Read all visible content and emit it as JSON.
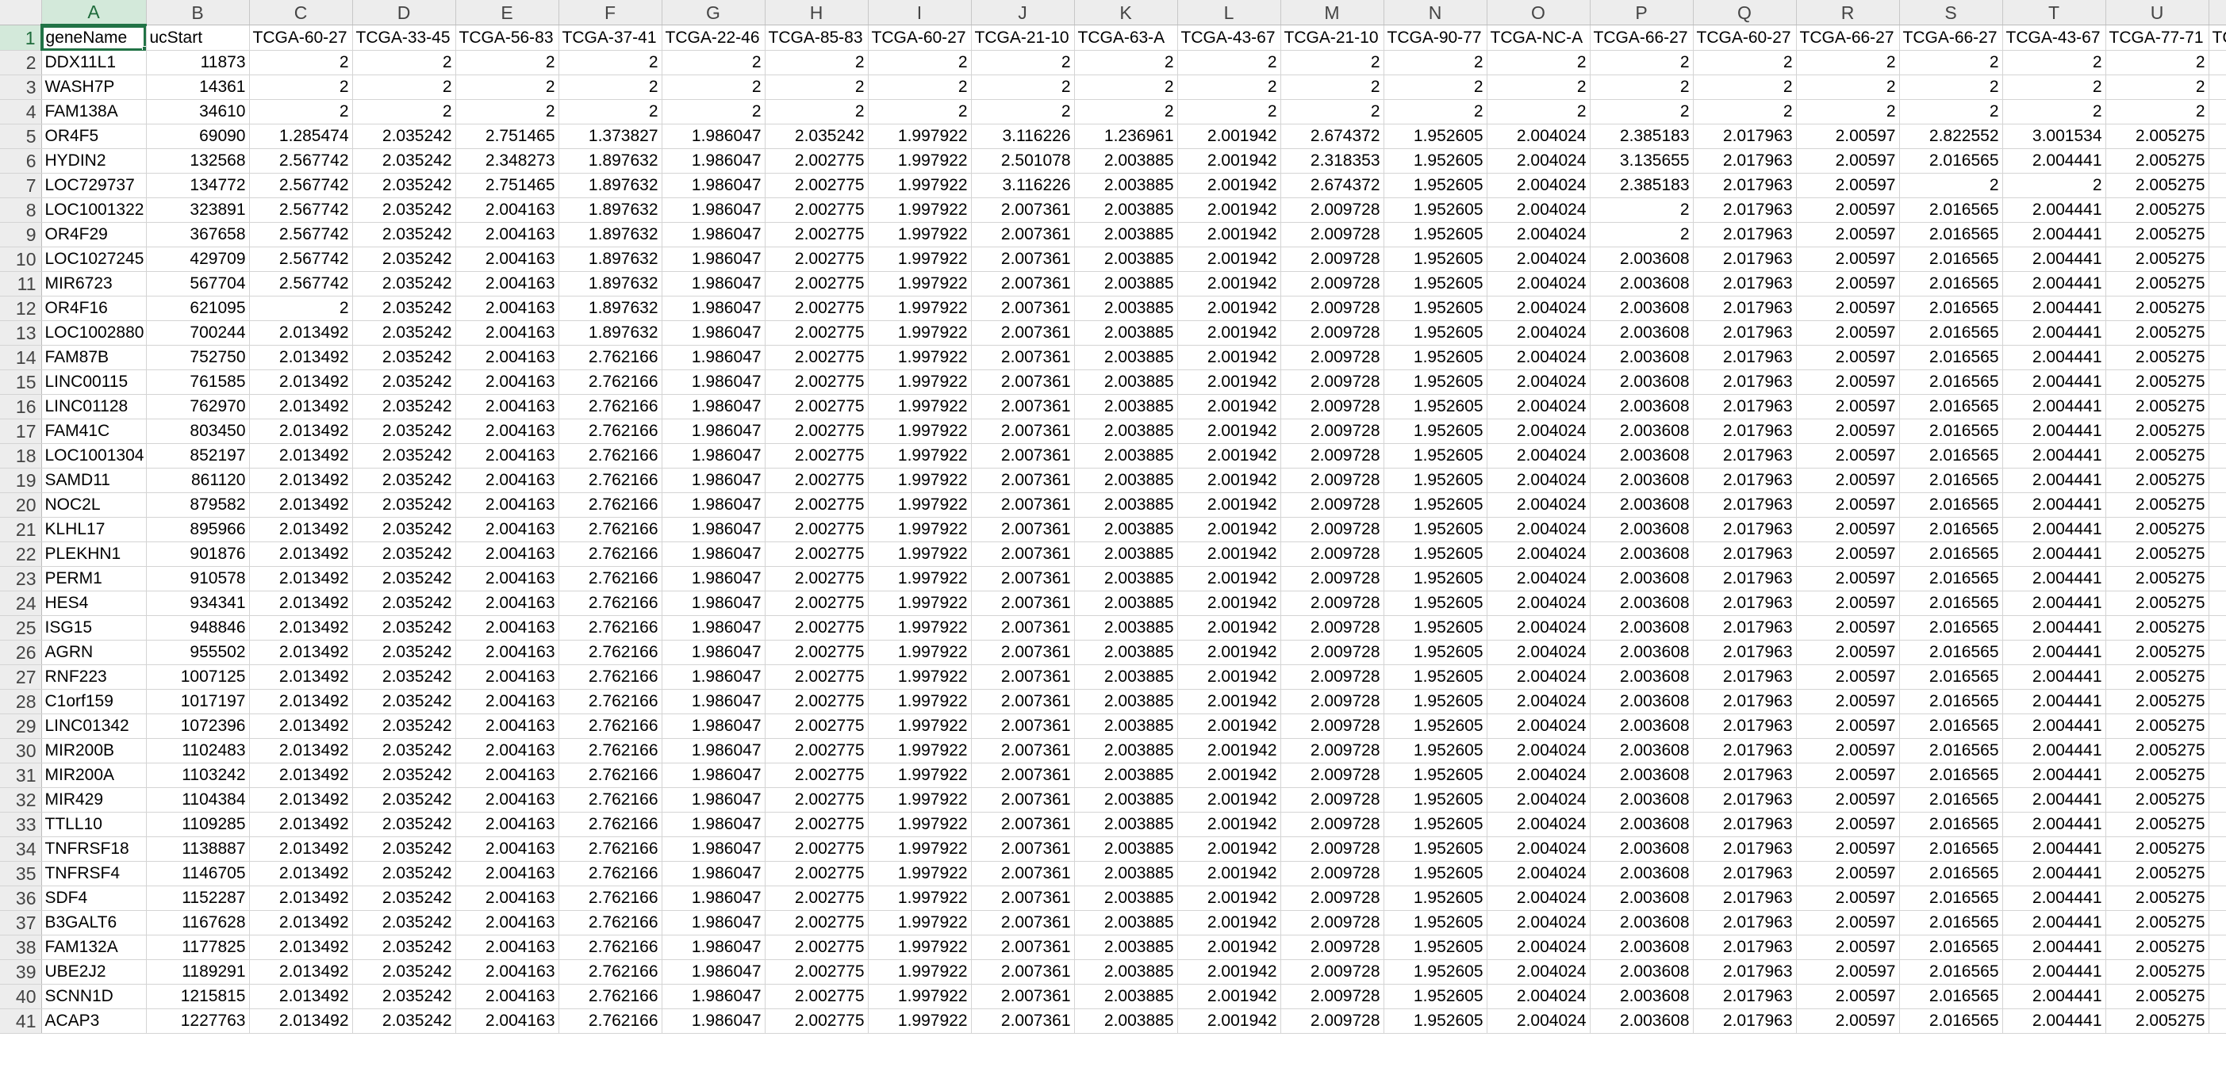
{
  "columns": [
    "A",
    "B",
    "C",
    "D",
    "E",
    "F",
    "G",
    "H",
    "I",
    "J",
    "K",
    "L",
    "M",
    "N",
    "O",
    "P",
    "Q",
    "R",
    "S",
    "T",
    "U"
  ],
  "partial_column_letter": "",
  "active_cell": "A1",
  "rows": [
    {
      "n": "1",
      "cells": [
        "geneName",
        "ucStart",
        "TCGA-60-27",
        "TCGA-33-45",
        "TCGA-56-83",
        "TCGA-37-41",
        "TCGA-22-46",
        "TCGA-85-83",
        "TCGA-60-27",
        "TCGA-21-10",
        "TCGA-63-A",
        "TCGA-43-67",
        "TCGA-21-10",
        "TCGA-90-77",
        "TCGA-NC-A",
        "TCGA-66-27",
        "TCGA-60-27",
        "TCGA-66-27",
        "TCGA-66-27",
        "TCGA-43-67",
        "TCGA-77-71",
        "TC"
      ]
    },
    {
      "n": "2",
      "cells": [
        "DDX11L1",
        "11873",
        "2",
        "2",
        "2",
        "2",
        "2",
        "2",
        "2",
        "2",
        "2",
        "2",
        "2",
        "2",
        "2",
        "2",
        "2",
        "2",
        "2",
        "2",
        "2",
        ""
      ]
    },
    {
      "n": "3",
      "cells": [
        "WASH7P",
        "14361",
        "2",
        "2",
        "2",
        "2",
        "2",
        "2",
        "2",
        "2",
        "2",
        "2",
        "2",
        "2",
        "2",
        "2",
        "2",
        "2",
        "2",
        "2",
        "2",
        ""
      ]
    },
    {
      "n": "4",
      "cells": [
        "FAM138A",
        "34610",
        "2",
        "2",
        "2",
        "2",
        "2",
        "2",
        "2",
        "2",
        "2",
        "2",
        "2",
        "2",
        "2",
        "2",
        "2",
        "2",
        "2",
        "2",
        "2",
        ""
      ]
    },
    {
      "n": "5",
      "cells": [
        "OR4F5",
        "69090",
        "1.285474",
        "2.035242",
        "2.751465",
        "1.373827",
        "1.986047",
        "2.035242",
        "1.997922",
        "3.116226",
        "1.236961",
        "2.001942",
        "2.674372",
        "1.952605",
        "2.004024",
        "2.385183",
        "2.017963",
        "2.00597",
        "2.822552",
        "3.001534",
        "2.005275",
        ""
      ]
    },
    {
      "n": "6",
      "cells": [
        "HYDIN2",
        "132568",
        "2.567742",
        "2.035242",
        "2.348273",
        "1.897632",
        "1.986047",
        "2.002775",
        "1.997922",
        "2.501078",
        "2.003885",
        "2.001942",
        "2.318353",
        "1.952605",
        "2.004024",
        "3.135655",
        "2.017963",
        "2.00597",
        "2.016565",
        "2.004441",
        "2.005275",
        ""
      ]
    },
    {
      "n": "7",
      "cells": [
        "LOC729737",
        "134772",
        "2.567742",
        "2.035242",
        "2.751465",
        "1.897632",
        "1.986047",
        "2.002775",
        "1.997922",
        "3.116226",
        "2.003885",
        "2.001942",
        "2.674372",
        "1.952605",
        "2.004024",
        "2.385183",
        "2.017963",
        "2.00597",
        "2",
        "2",
        "2.005275",
        ""
      ]
    },
    {
      "n": "8",
      "cells": [
        "LOC1001322",
        "323891",
        "2.567742",
        "2.035242",
        "2.004163",
        "1.897632",
        "1.986047",
        "2.002775",
        "1.997922",
        "2.007361",
        "2.003885",
        "2.001942",
        "2.009728",
        "1.952605",
        "2.004024",
        "2",
        "2.017963",
        "2.00597",
        "2.016565",
        "2.004441",
        "2.005275",
        ""
      ]
    },
    {
      "n": "9",
      "cells": [
        "OR4F29",
        "367658",
        "2.567742",
        "2.035242",
        "2.004163",
        "1.897632",
        "1.986047",
        "2.002775",
        "1.997922",
        "2.007361",
        "2.003885",
        "2.001942",
        "2.009728",
        "1.952605",
        "2.004024",
        "2",
        "2.017963",
        "2.00597",
        "2.016565",
        "2.004441",
        "2.005275",
        ""
      ]
    },
    {
      "n": "10",
      "cells": [
        "LOC1027245",
        "429709",
        "2.567742",
        "2.035242",
        "2.004163",
        "1.897632",
        "1.986047",
        "2.002775",
        "1.997922",
        "2.007361",
        "2.003885",
        "2.001942",
        "2.009728",
        "1.952605",
        "2.004024",
        "2.003608",
        "2.017963",
        "2.00597",
        "2.016565",
        "2.004441",
        "2.005275",
        ""
      ]
    },
    {
      "n": "11",
      "cells": [
        "MIR6723",
        "567704",
        "2.567742",
        "2.035242",
        "2.004163",
        "1.897632",
        "1.986047",
        "2.002775",
        "1.997922",
        "2.007361",
        "2.003885",
        "2.001942",
        "2.009728",
        "1.952605",
        "2.004024",
        "2.003608",
        "2.017963",
        "2.00597",
        "2.016565",
        "2.004441",
        "2.005275",
        ""
      ]
    },
    {
      "n": "12",
      "cells": [
        "OR4F16",
        "621095",
        "2",
        "2.035242",
        "2.004163",
        "1.897632",
        "1.986047",
        "2.002775",
        "1.997922",
        "2.007361",
        "2.003885",
        "2.001942",
        "2.009728",
        "1.952605",
        "2.004024",
        "2.003608",
        "2.017963",
        "2.00597",
        "2.016565",
        "2.004441",
        "2.005275",
        ""
      ]
    },
    {
      "n": "13",
      "cells": [
        "LOC1002880",
        "700244",
        "2.013492",
        "2.035242",
        "2.004163",
        "1.897632",
        "1.986047",
        "2.002775",
        "1.997922",
        "2.007361",
        "2.003885",
        "2.001942",
        "2.009728",
        "1.952605",
        "2.004024",
        "2.003608",
        "2.017963",
        "2.00597",
        "2.016565",
        "2.004441",
        "2.005275",
        ""
      ]
    },
    {
      "n": "14",
      "cells": [
        "FAM87B",
        "752750",
        "2.013492",
        "2.035242",
        "2.004163",
        "2.762166",
        "1.986047",
        "2.002775",
        "1.997922",
        "2.007361",
        "2.003885",
        "2.001942",
        "2.009728",
        "1.952605",
        "2.004024",
        "2.003608",
        "2.017963",
        "2.00597",
        "2.016565",
        "2.004441",
        "2.005275",
        ""
      ]
    },
    {
      "n": "15",
      "cells": [
        "LINC00115",
        "761585",
        "2.013492",
        "2.035242",
        "2.004163",
        "2.762166",
        "1.986047",
        "2.002775",
        "1.997922",
        "2.007361",
        "2.003885",
        "2.001942",
        "2.009728",
        "1.952605",
        "2.004024",
        "2.003608",
        "2.017963",
        "2.00597",
        "2.016565",
        "2.004441",
        "2.005275",
        ""
      ]
    },
    {
      "n": "16",
      "cells": [
        "LINC01128",
        "762970",
        "2.013492",
        "2.035242",
        "2.004163",
        "2.762166",
        "1.986047",
        "2.002775",
        "1.997922",
        "2.007361",
        "2.003885",
        "2.001942",
        "2.009728",
        "1.952605",
        "2.004024",
        "2.003608",
        "2.017963",
        "2.00597",
        "2.016565",
        "2.004441",
        "2.005275",
        ""
      ]
    },
    {
      "n": "17",
      "cells": [
        "FAM41C",
        "803450",
        "2.013492",
        "2.035242",
        "2.004163",
        "2.762166",
        "1.986047",
        "2.002775",
        "1.997922",
        "2.007361",
        "2.003885",
        "2.001942",
        "2.009728",
        "1.952605",
        "2.004024",
        "2.003608",
        "2.017963",
        "2.00597",
        "2.016565",
        "2.004441",
        "2.005275",
        ""
      ]
    },
    {
      "n": "18",
      "cells": [
        "LOC1001304",
        "852197",
        "2.013492",
        "2.035242",
        "2.004163",
        "2.762166",
        "1.986047",
        "2.002775",
        "1.997922",
        "2.007361",
        "2.003885",
        "2.001942",
        "2.009728",
        "1.952605",
        "2.004024",
        "2.003608",
        "2.017963",
        "2.00597",
        "2.016565",
        "2.004441",
        "2.005275",
        ""
      ]
    },
    {
      "n": "19",
      "cells": [
        "SAMD11",
        "861120",
        "2.013492",
        "2.035242",
        "2.004163",
        "2.762166",
        "1.986047",
        "2.002775",
        "1.997922",
        "2.007361",
        "2.003885",
        "2.001942",
        "2.009728",
        "1.952605",
        "2.004024",
        "2.003608",
        "2.017963",
        "2.00597",
        "2.016565",
        "2.004441",
        "2.005275",
        ""
      ]
    },
    {
      "n": "20",
      "cells": [
        "NOC2L",
        "879582",
        "2.013492",
        "2.035242",
        "2.004163",
        "2.762166",
        "1.986047",
        "2.002775",
        "1.997922",
        "2.007361",
        "2.003885",
        "2.001942",
        "2.009728",
        "1.952605",
        "2.004024",
        "2.003608",
        "2.017963",
        "2.00597",
        "2.016565",
        "2.004441",
        "2.005275",
        ""
      ]
    },
    {
      "n": "21",
      "cells": [
        "KLHL17",
        "895966",
        "2.013492",
        "2.035242",
        "2.004163",
        "2.762166",
        "1.986047",
        "2.002775",
        "1.997922",
        "2.007361",
        "2.003885",
        "2.001942",
        "2.009728",
        "1.952605",
        "2.004024",
        "2.003608",
        "2.017963",
        "2.00597",
        "2.016565",
        "2.004441",
        "2.005275",
        ""
      ]
    },
    {
      "n": "22",
      "cells": [
        "PLEKHN1",
        "901876",
        "2.013492",
        "2.035242",
        "2.004163",
        "2.762166",
        "1.986047",
        "2.002775",
        "1.997922",
        "2.007361",
        "2.003885",
        "2.001942",
        "2.009728",
        "1.952605",
        "2.004024",
        "2.003608",
        "2.017963",
        "2.00597",
        "2.016565",
        "2.004441",
        "2.005275",
        ""
      ]
    },
    {
      "n": "23",
      "cells": [
        "PERM1",
        "910578",
        "2.013492",
        "2.035242",
        "2.004163",
        "2.762166",
        "1.986047",
        "2.002775",
        "1.997922",
        "2.007361",
        "2.003885",
        "2.001942",
        "2.009728",
        "1.952605",
        "2.004024",
        "2.003608",
        "2.017963",
        "2.00597",
        "2.016565",
        "2.004441",
        "2.005275",
        ""
      ]
    },
    {
      "n": "24",
      "cells": [
        "HES4",
        "934341",
        "2.013492",
        "2.035242",
        "2.004163",
        "2.762166",
        "1.986047",
        "2.002775",
        "1.997922",
        "2.007361",
        "2.003885",
        "2.001942",
        "2.009728",
        "1.952605",
        "2.004024",
        "2.003608",
        "2.017963",
        "2.00597",
        "2.016565",
        "2.004441",
        "2.005275",
        ""
      ]
    },
    {
      "n": "25",
      "cells": [
        "ISG15",
        "948846",
        "2.013492",
        "2.035242",
        "2.004163",
        "2.762166",
        "1.986047",
        "2.002775",
        "1.997922",
        "2.007361",
        "2.003885",
        "2.001942",
        "2.009728",
        "1.952605",
        "2.004024",
        "2.003608",
        "2.017963",
        "2.00597",
        "2.016565",
        "2.004441",
        "2.005275",
        ""
      ]
    },
    {
      "n": "26",
      "cells": [
        "AGRN",
        "955502",
        "2.013492",
        "2.035242",
        "2.004163",
        "2.762166",
        "1.986047",
        "2.002775",
        "1.997922",
        "2.007361",
        "2.003885",
        "2.001942",
        "2.009728",
        "1.952605",
        "2.004024",
        "2.003608",
        "2.017963",
        "2.00597",
        "2.016565",
        "2.004441",
        "2.005275",
        ""
      ]
    },
    {
      "n": "27",
      "cells": [
        "RNF223",
        "1007125",
        "2.013492",
        "2.035242",
        "2.004163",
        "2.762166",
        "1.986047",
        "2.002775",
        "1.997922",
        "2.007361",
        "2.003885",
        "2.001942",
        "2.009728",
        "1.952605",
        "2.004024",
        "2.003608",
        "2.017963",
        "2.00597",
        "2.016565",
        "2.004441",
        "2.005275",
        ""
      ]
    },
    {
      "n": "28",
      "cells": [
        "C1orf159",
        "1017197",
        "2.013492",
        "2.035242",
        "2.004163",
        "2.762166",
        "1.986047",
        "2.002775",
        "1.997922",
        "2.007361",
        "2.003885",
        "2.001942",
        "2.009728",
        "1.952605",
        "2.004024",
        "2.003608",
        "2.017963",
        "2.00597",
        "2.016565",
        "2.004441",
        "2.005275",
        ""
      ]
    },
    {
      "n": "29",
      "cells": [
        "LINC01342",
        "1072396",
        "2.013492",
        "2.035242",
        "2.004163",
        "2.762166",
        "1.986047",
        "2.002775",
        "1.997922",
        "2.007361",
        "2.003885",
        "2.001942",
        "2.009728",
        "1.952605",
        "2.004024",
        "2.003608",
        "2.017963",
        "2.00597",
        "2.016565",
        "2.004441",
        "2.005275",
        ""
      ]
    },
    {
      "n": "30",
      "cells": [
        "MIR200B",
        "1102483",
        "2.013492",
        "2.035242",
        "2.004163",
        "2.762166",
        "1.986047",
        "2.002775",
        "1.997922",
        "2.007361",
        "2.003885",
        "2.001942",
        "2.009728",
        "1.952605",
        "2.004024",
        "2.003608",
        "2.017963",
        "2.00597",
        "2.016565",
        "2.004441",
        "2.005275",
        ""
      ]
    },
    {
      "n": "31",
      "cells": [
        "MIR200A",
        "1103242",
        "2.013492",
        "2.035242",
        "2.004163",
        "2.762166",
        "1.986047",
        "2.002775",
        "1.997922",
        "2.007361",
        "2.003885",
        "2.001942",
        "2.009728",
        "1.952605",
        "2.004024",
        "2.003608",
        "2.017963",
        "2.00597",
        "2.016565",
        "2.004441",
        "2.005275",
        ""
      ]
    },
    {
      "n": "32",
      "cells": [
        "MIR429",
        "1104384",
        "2.013492",
        "2.035242",
        "2.004163",
        "2.762166",
        "1.986047",
        "2.002775",
        "1.997922",
        "2.007361",
        "2.003885",
        "2.001942",
        "2.009728",
        "1.952605",
        "2.004024",
        "2.003608",
        "2.017963",
        "2.00597",
        "2.016565",
        "2.004441",
        "2.005275",
        ""
      ]
    },
    {
      "n": "33",
      "cells": [
        "TTLL10",
        "1109285",
        "2.013492",
        "2.035242",
        "2.004163",
        "2.762166",
        "1.986047",
        "2.002775",
        "1.997922",
        "2.007361",
        "2.003885",
        "2.001942",
        "2.009728",
        "1.952605",
        "2.004024",
        "2.003608",
        "2.017963",
        "2.00597",
        "2.016565",
        "2.004441",
        "2.005275",
        ""
      ]
    },
    {
      "n": "34",
      "cells": [
        "TNFRSF18",
        "1138887",
        "2.013492",
        "2.035242",
        "2.004163",
        "2.762166",
        "1.986047",
        "2.002775",
        "1.997922",
        "2.007361",
        "2.003885",
        "2.001942",
        "2.009728",
        "1.952605",
        "2.004024",
        "2.003608",
        "2.017963",
        "2.00597",
        "2.016565",
        "2.004441",
        "2.005275",
        ""
      ]
    },
    {
      "n": "35",
      "cells": [
        "TNFRSF4",
        "1146705",
        "2.013492",
        "2.035242",
        "2.004163",
        "2.762166",
        "1.986047",
        "2.002775",
        "1.997922",
        "2.007361",
        "2.003885",
        "2.001942",
        "2.009728",
        "1.952605",
        "2.004024",
        "2.003608",
        "2.017963",
        "2.00597",
        "2.016565",
        "2.004441",
        "2.005275",
        ""
      ]
    },
    {
      "n": "36",
      "cells": [
        "SDF4",
        "1152287",
        "2.013492",
        "2.035242",
        "2.004163",
        "2.762166",
        "1.986047",
        "2.002775",
        "1.997922",
        "2.007361",
        "2.003885",
        "2.001942",
        "2.009728",
        "1.952605",
        "2.004024",
        "2.003608",
        "2.017963",
        "2.00597",
        "2.016565",
        "2.004441",
        "2.005275",
        ""
      ]
    },
    {
      "n": "37",
      "cells": [
        "B3GALT6",
        "1167628",
        "2.013492",
        "2.035242",
        "2.004163",
        "2.762166",
        "1.986047",
        "2.002775",
        "1.997922",
        "2.007361",
        "2.003885",
        "2.001942",
        "2.009728",
        "1.952605",
        "2.004024",
        "2.003608",
        "2.017963",
        "2.00597",
        "2.016565",
        "2.004441",
        "2.005275",
        ""
      ]
    },
    {
      "n": "38",
      "cells": [
        "FAM132A",
        "1177825",
        "2.013492",
        "2.035242",
        "2.004163",
        "2.762166",
        "1.986047",
        "2.002775",
        "1.997922",
        "2.007361",
        "2.003885",
        "2.001942",
        "2.009728",
        "1.952605",
        "2.004024",
        "2.003608",
        "2.017963",
        "2.00597",
        "2.016565",
        "2.004441",
        "2.005275",
        ""
      ]
    },
    {
      "n": "39",
      "cells": [
        "UBE2J2",
        "1189291",
        "2.013492",
        "2.035242",
        "2.004163",
        "2.762166",
        "1.986047",
        "2.002775",
        "1.997922",
        "2.007361",
        "2.003885",
        "2.001942",
        "2.009728",
        "1.952605",
        "2.004024",
        "2.003608",
        "2.017963",
        "2.00597",
        "2.016565",
        "2.004441",
        "2.005275",
        ""
      ]
    },
    {
      "n": "40",
      "cells": [
        "SCNN1D",
        "1215815",
        "2.013492",
        "2.035242",
        "2.004163",
        "2.762166",
        "1.986047",
        "2.002775",
        "1.997922",
        "2.007361",
        "2.003885",
        "2.001942",
        "2.009728",
        "1.952605",
        "2.004024",
        "2.003608",
        "2.017963",
        "2.00597",
        "2.016565",
        "2.004441",
        "2.005275",
        ""
      ]
    },
    {
      "n": "41",
      "cells": [
        "ACAP3",
        "1227763",
        "2.013492",
        "2.035242",
        "2.004163",
        "2.762166",
        "1.986047",
        "2.002775",
        "1.997922",
        "2.007361",
        "2.003885",
        "2.001942",
        "2.009728",
        "1.952605",
        "2.004024",
        "2.003608",
        "2.017963",
        "2.00597",
        "2.016565",
        "2.004441",
        "2.005275",
        ""
      ]
    }
  ]
}
